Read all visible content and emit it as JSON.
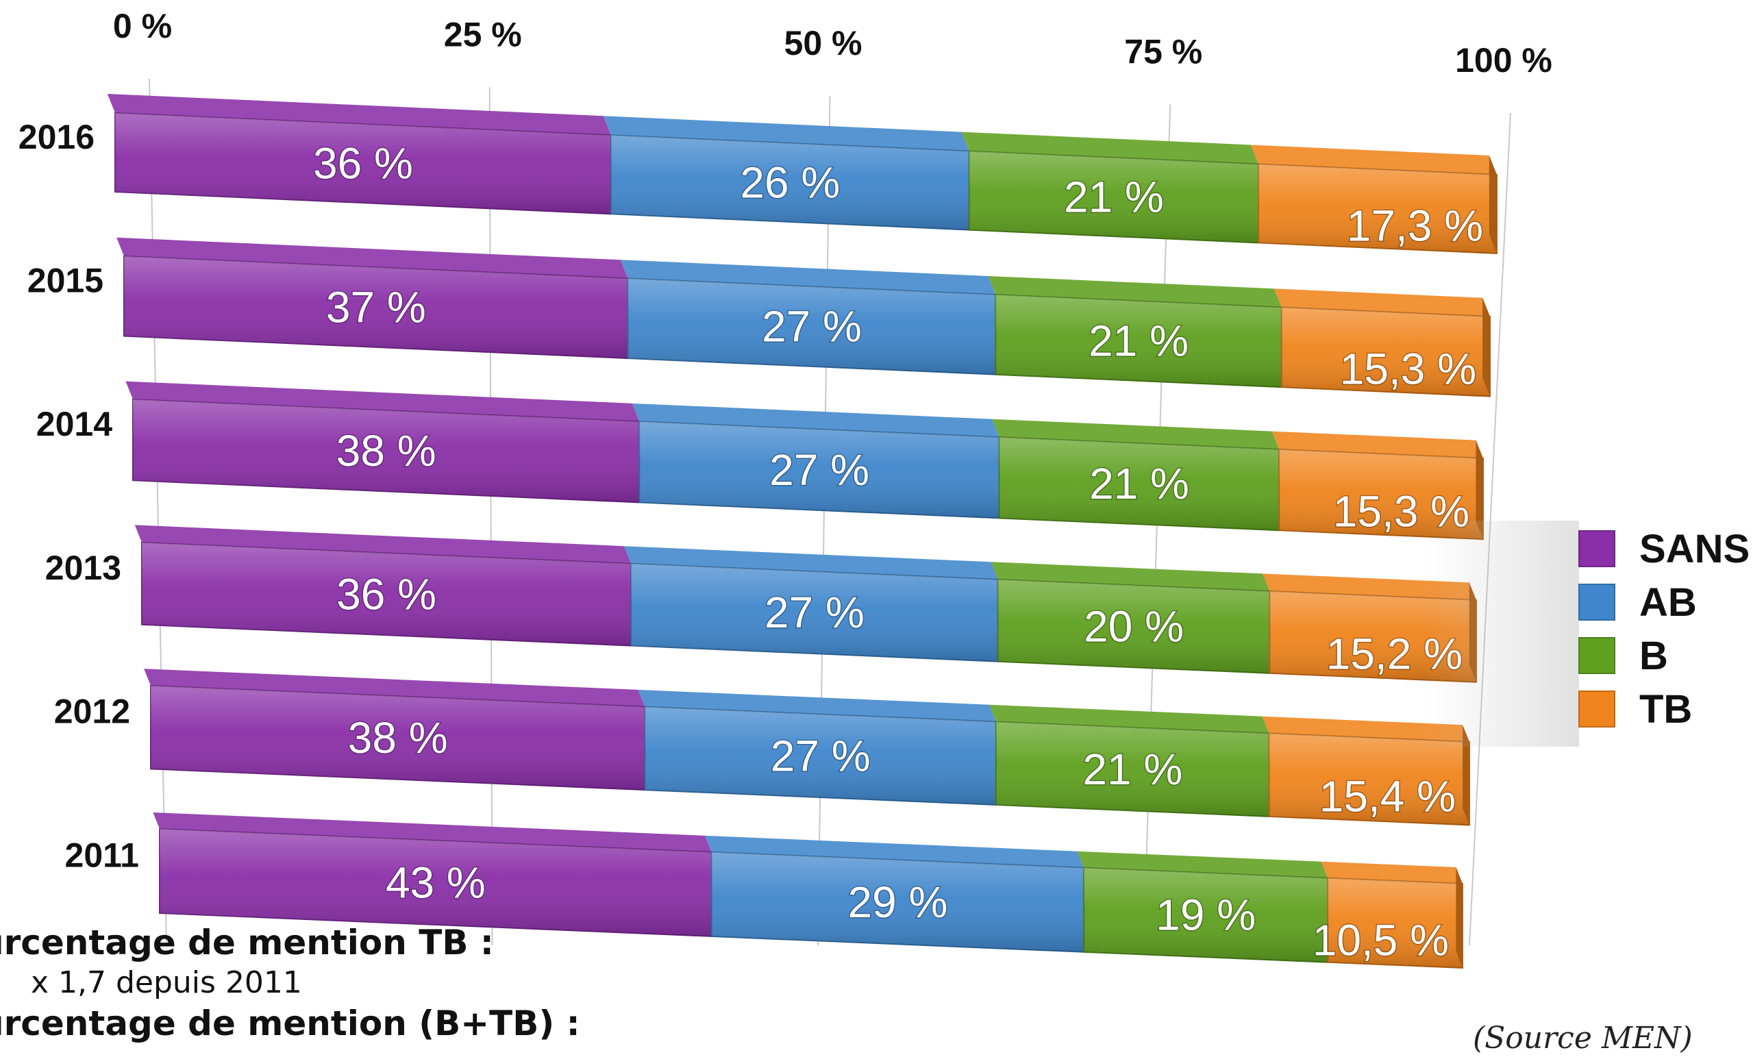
{
  "chart_data": {
    "type": "bar",
    "orientation": "horizontal",
    "stacked": true,
    "percent_stacked": true,
    "categories": [
      "2016",
      "2015",
      "2014",
      "2013",
      "2012",
      "2011"
    ],
    "series": [
      {
        "name": "SANS",
        "color": "#8a2fa8",
        "values": [
          36,
          37,
          38,
          36,
          38,
          43
        ],
        "labels": [
          "36 %",
          "37 %",
          "38 %",
          "36 %",
          "38 %",
          "43 %"
        ]
      },
      {
        "name": "AB",
        "color": "#3f86cc",
        "values": [
          26,
          27,
          27,
          27,
          27,
          29
        ],
        "labels": [
          "26 %",
          "27 %",
          "27 %",
          "27 %",
          "27 %",
          "29 %"
        ]
      },
      {
        "name": "B",
        "color": "#5fa01f",
        "values": [
          21,
          21,
          21,
          20,
          21,
          19
        ],
        "labels": [
          "21 %",
          "21 %",
          "21 %",
          "20 %",
          "21 %",
          "19 %"
        ]
      },
      {
        "name": "TB",
        "color": "#f0841c",
        "values": [
          17.3,
          15.3,
          15.3,
          15.2,
          15.4,
          10.5
        ],
        "labels": [
          "17,3 %",
          "15,3 %",
          "15,3 %",
          "15,2 %",
          "15,4 %",
          "10,5 %"
        ]
      }
    ],
    "xlim": [
      0,
      100
    ],
    "xticks": [
      "0 %",
      "25 %",
      "50 %",
      "75 %",
      "100 %"
    ],
    "legend_position": "right",
    "grid": true
  },
  "notes": {
    "tb_heading": "urcentage de mention TB :",
    "tb_value": "x 1,7 depuis 2011",
    "btb_heading": "urcentage de mention (B+TB) :"
  },
  "source": "(Source MEN)"
}
